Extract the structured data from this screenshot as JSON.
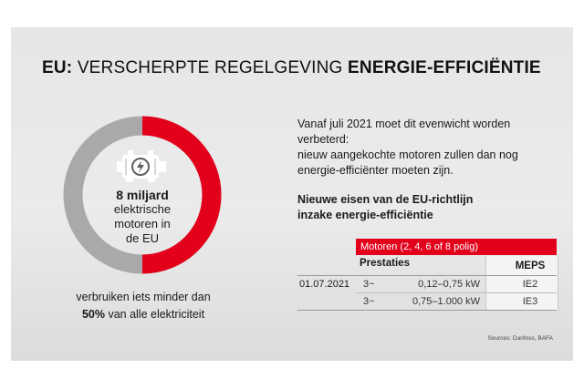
{
  "title": {
    "bold_prefix": "EU:",
    "regular": "VERSCHERPTE REGELGEVING",
    "bold_suffix": "ENERGIE-EFFICIËNTIE"
  },
  "donut": {
    "value_label": "8 miljard",
    "line1": "elektrische",
    "line2": "motoren in",
    "line3": "de EU",
    "red_fraction": 0.5,
    "red_color": "#e3001b",
    "gray_color": "#a9a9a9",
    "icon": "electric-motor-icon"
  },
  "caption": {
    "line1": "verbruiken iets minder dan",
    "bold": "50%",
    "rest": " van alle elektriciteit"
  },
  "intro": {
    "line1": "Vanaf  juli 2021 moet dit evenwicht worden",
    "line2": "verbeterd:",
    "line3": "nieuw aangekochte motoren zullen dan nog",
    "line4": "energie-efficiënter moeten zijn."
  },
  "subhead": {
    "line1": "Nieuwe eisen van de EU-richtlijn",
    "line2": "inzake energie-efficiëntie"
  },
  "table": {
    "banner": "Motoren (2, 4, 6 of 8 polig)",
    "col_prestaties": "Prestaties",
    "col_meps": "MEPS",
    "rows": [
      {
        "date": "01.07.2021",
        "phase": "3~",
        "range": "0,12–0,75 kW",
        "meps": "IE2"
      },
      {
        "date": "",
        "phase": "3~",
        "range": "0,75–1.000 kW",
        "meps": "IE3"
      }
    ]
  },
  "sources": "Sources: Danfoss, BAFA"
}
